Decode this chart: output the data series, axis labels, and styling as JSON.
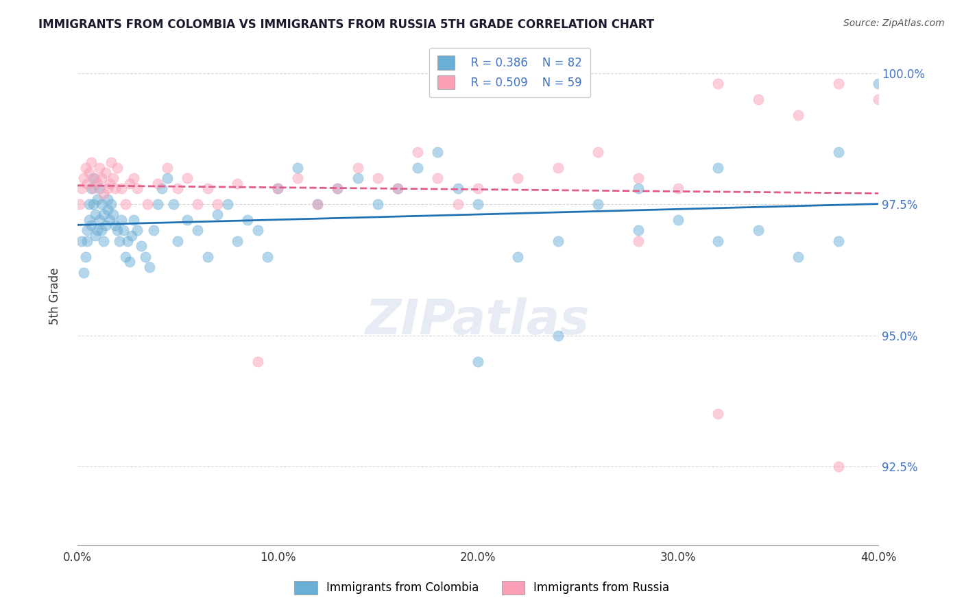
{
  "title": "IMMIGRANTS FROM COLOMBIA VS IMMIGRANTS FROM RUSSIA 5TH GRADE CORRELATION CHART",
  "source": "Source: ZipAtlas.com",
  "xlabel_bottom": "",
  "ylabel": "5th Grade",
  "x_min": 0.0,
  "x_max": 40.0,
  "y_min": 91.0,
  "y_max": 100.5,
  "y_ticks": [
    92.5,
    95.0,
    97.5,
    100.0
  ],
  "x_ticks": [
    0.0,
    10.0,
    20.0,
    30.0,
    40.0
  ],
  "legend_blue_r": "R = 0.386",
  "legend_blue_n": "N = 82",
  "legend_pink_r": "R = 0.509",
  "legend_pink_n": "N = 59",
  "blue_color": "#6baed6",
  "pink_color": "#fa9fb5",
  "blue_line_color": "#2171b5",
  "pink_line_color": "#e05c8a",
  "watermark": "ZIPatlas",
  "legend_label_blue": "Immigrants from Colombia",
  "legend_label_pink": "Immigrants from Russia",
  "colombia_x": [
    0.2,
    0.3,
    0.4,
    0.5,
    0.5,
    0.6,
    0.6,
    0.7,
    0.7,
    0.8,
    0.8,
    0.9,
    0.9,
    1.0,
    1.0,
    1.1,
    1.1,
    1.2,
    1.2,
    1.3,
    1.3,
    1.4,
    1.5,
    1.5,
    1.6,
    1.7,
    1.8,
    1.9,
    2.0,
    2.1,
    2.2,
    2.3,
    2.4,
    2.5,
    2.6,
    2.7,
    2.8,
    3.0,
    3.2,
    3.4,
    3.6,
    3.8,
    4.0,
    4.2,
    4.5,
    4.8,
    5.0,
    5.5,
    6.0,
    6.5,
    7.0,
    7.5,
    8.0,
    8.5,
    9.0,
    9.5,
    10.0,
    11.0,
    12.0,
    13.0,
    14.0,
    15.0,
    16.0,
    17.0,
    18.0,
    19.0,
    20.0,
    22.0,
    24.0,
    26.0,
    28.0,
    30.0,
    32.0,
    34.0,
    36.0,
    38.0,
    40.0,
    38.0,
    32.0,
    28.0,
    24.0,
    20.0
  ],
  "colombia_y": [
    96.8,
    96.2,
    96.5,
    97.0,
    96.8,
    97.2,
    97.5,
    97.8,
    97.1,
    98.0,
    97.5,
    97.3,
    96.9,
    97.6,
    97.0,
    97.8,
    97.2,
    97.5,
    97.0,
    97.3,
    96.8,
    97.1,
    97.4,
    97.6,
    97.2,
    97.5,
    97.3,
    97.1,
    97.0,
    96.8,
    97.2,
    97.0,
    96.5,
    96.8,
    96.4,
    96.9,
    97.2,
    97.0,
    96.7,
    96.5,
    96.3,
    97.0,
    97.5,
    97.8,
    98.0,
    97.5,
    96.8,
    97.2,
    97.0,
    96.5,
    97.3,
    97.5,
    96.8,
    97.2,
    97.0,
    96.5,
    97.8,
    98.2,
    97.5,
    97.8,
    98.0,
    97.5,
    97.8,
    98.2,
    98.5,
    97.8,
    97.5,
    96.5,
    96.8,
    97.5,
    97.0,
    97.2,
    96.8,
    97.0,
    96.5,
    96.8,
    99.8,
    98.5,
    98.2,
    97.8,
    95.0,
    94.5
  ],
  "russia_x": [
    0.1,
    0.2,
    0.3,
    0.4,
    0.5,
    0.6,
    0.7,
    0.8,
    0.9,
    1.0,
    1.1,
    1.2,
    1.3,
    1.4,
    1.5,
    1.6,
    1.7,
    1.8,
    1.9,
    2.0,
    2.2,
    2.4,
    2.6,
    2.8,
    3.0,
    3.5,
    4.0,
    4.5,
    5.0,
    5.5,
    6.0,
    6.5,
    7.0,
    8.0,
    9.0,
    10.0,
    11.0,
    12.0,
    13.0,
    14.0,
    15.0,
    16.0,
    17.0,
    18.0,
    19.0,
    20.0,
    22.0,
    24.0,
    26.0,
    28.0,
    30.0,
    32.0,
    34.0,
    36.0,
    38.0,
    40.0,
    28.0,
    32.0,
    38.0
  ],
  "russia_y": [
    97.5,
    97.8,
    98.0,
    98.2,
    97.9,
    98.1,
    98.3,
    97.8,
    98.0,
    97.9,
    98.2,
    98.0,
    97.7,
    98.1,
    97.8,
    97.9,
    98.3,
    98.0,
    97.8,
    98.2,
    97.8,
    97.5,
    97.9,
    98.0,
    97.8,
    97.5,
    97.9,
    98.2,
    97.8,
    98.0,
    97.5,
    97.8,
    97.5,
    97.9,
    94.5,
    97.8,
    98.0,
    97.5,
    97.8,
    98.2,
    98.0,
    97.8,
    98.5,
    98.0,
    97.5,
    97.8,
    98.0,
    98.2,
    98.5,
    98.0,
    97.8,
    99.8,
    99.5,
    99.2,
    99.8,
    99.5,
    96.8,
    93.5,
    92.5
  ]
}
